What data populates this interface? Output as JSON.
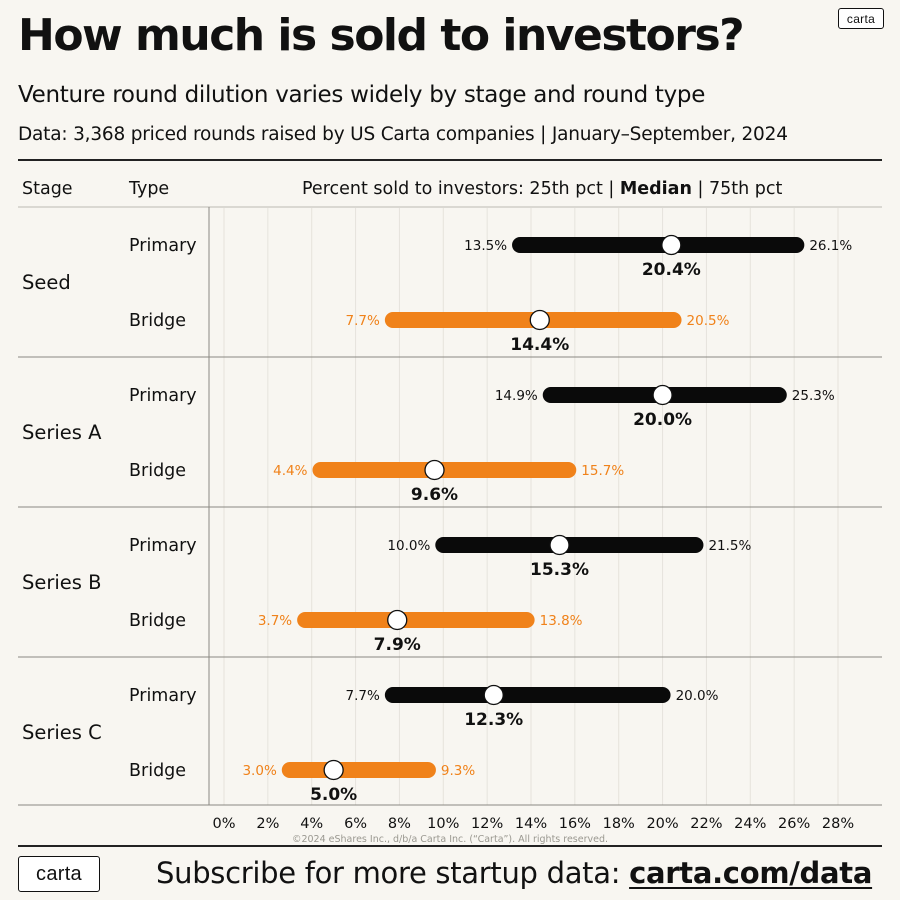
{
  "header": {
    "title": "How much is sold to investors?",
    "subtitle": "Venture round dilution varies widely by stage and round type",
    "source": "Data: 3,368 priced rounds raised by US Carta companies | January–September, 2024",
    "logo": "carta"
  },
  "table_header": {
    "stage": "Stage",
    "type": "Type",
    "pct_prefix": "Percent sold to investors: 25th pct | ",
    "pct_median": "Median",
    "pct_suffix": " | 75th pct"
  },
  "footer": {
    "logo": "carta",
    "cta_prefix": "Subscribe for more startup data: ",
    "cta_link": "carta.com/data",
    "copyright": "©2024 eShares Inc., d/b/a Carta Inc. (“Carta”). All rights reserved."
  },
  "colors": {
    "primary": "#0a0a0a",
    "bridge": "#f0821a",
    "background": "#f8f6f1",
    "grid": "#e6e3dc"
  },
  "chart_data": {
    "type": "dumbbell",
    "x_ticks": [
      "0%",
      "2%",
      "4%",
      "6%",
      "8%",
      "10%",
      "12%",
      "14%",
      "16%",
      "18%",
      "20%",
      "22%",
      "24%",
      "26%",
      "28%"
    ],
    "xlim": [
      0,
      28
    ],
    "grid": true,
    "stages": [
      {
        "stage": "Seed",
        "rows": [
          {
            "type": "Primary",
            "p25": 13.5,
            "median": 20.4,
            "p75": 26.1,
            "p25_label": "13.5%",
            "median_label": "20.4%",
            "p75_label": "26.1%"
          },
          {
            "type": "Bridge",
            "p25": 7.7,
            "median": 14.4,
            "p75": 20.5,
            "p25_label": "7.7%",
            "median_label": "14.4%",
            "p75_label": "20.5%"
          }
        ]
      },
      {
        "stage": "Series A",
        "rows": [
          {
            "type": "Primary",
            "p25": 14.9,
            "median": 20.0,
            "p75": 25.3,
            "p25_label": "14.9%",
            "median_label": "20.0%",
            "p75_label": "25.3%"
          },
          {
            "type": "Bridge",
            "p25": 4.4,
            "median": 9.6,
            "p75": 15.7,
            "p25_label": "4.4%",
            "median_label": "9.6%",
            "p75_label": "15.7%"
          }
        ]
      },
      {
        "stage": "Series B",
        "rows": [
          {
            "type": "Primary",
            "p25": 10.0,
            "median": 15.3,
            "p75": 21.5,
            "p25_label": "10.0%",
            "median_label": "15.3%",
            "p75_label": "21.5%"
          },
          {
            "type": "Bridge",
            "p25": 3.7,
            "median": 7.9,
            "p75": 13.8,
            "p25_label": "3.7%",
            "median_label": "7.9%",
            "p75_label": "13.8%"
          }
        ]
      },
      {
        "stage": "Series C",
        "rows": [
          {
            "type": "Primary",
            "p25": 7.7,
            "median": 12.3,
            "p75": 20.0,
            "p25_label": "7.7%",
            "median_label": "12.3%",
            "p75_label": "20.0%"
          },
          {
            "type": "Bridge",
            "p25": 3.0,
            "median": 5.0,
            "p75": 9.3,
            "p25_label": "3.0%",
            "median_label": "5.0%",
            "p75_label": "9.3%"
          }
        ]
      }
    ]
  }
}
